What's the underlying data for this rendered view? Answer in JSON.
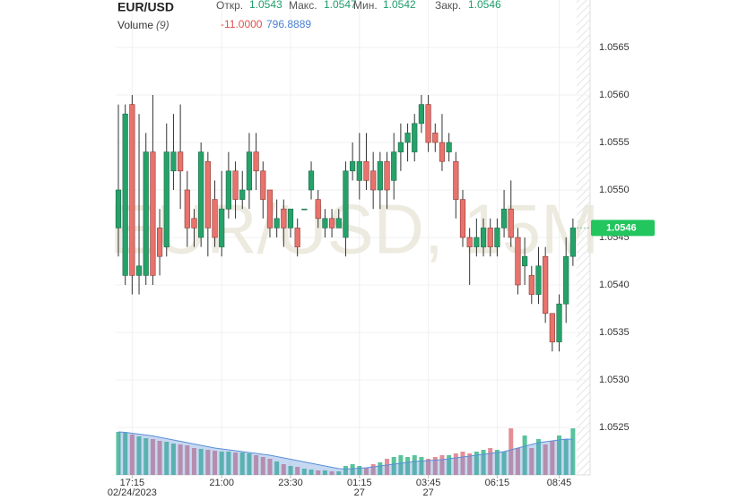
{
  "header": {
    "symbol": "EUR/USD",
    "open_label": "Откр.",
    "open": "1.0543",
    "high_label": "Макс.",
    "high": "1.0547",
    "low_label": "Мин.",
    "low": "1.0542",
    "close_label": "Закр.",
    "close": "1.0546",
    "volume_label": "Volume",
    "volume_period": "(9)",
    "volume_change": "-11.0000",
    "volume_value": "796.8889"
  },
  "chart_data": {
    "type": "candlestick",
    "watermark": "EUR/USD, 15M",
    "categories": [
      null,
      null,
      "17:15",
      null,
      null,
      null,
      null,
      null,
      null,
      null,
      null,
      null,
      null,
      null,
      null,
      "21:00",
      null,
      null,
      null,
      null,
      null,
      null,
      null,
      null,
      null,
      "23:30",
      null,
      null,
      null,
      null,
      null,
      null,
      null,
      null,
      null,
      "01:15",
      null,
      null,
      null,
      null,
      null,
      null,
      null,
      null,
      null,
      "03:45",
      null,
      null,
      null,
      null,
      null,
      null,
      null,
      null,
      null,
      "06:15",
      null,
      null,
      null,
      null,
      null,
      null,
      null,
      null,
      "08:45",
      null,
      null
    ],
    "category_dates": [
      null,
      null,
      "02/24/2023",
      null,
      null,
      null,
      null,
      null,
      null,
      null,
      null,
      null,
      null,
      null,
      null,
      null,
      null,
      null,
      null,
      null,
      null,
      null,
      null,
      null,
      null,
      null,
      null,
      null,
      null,
      null,
      null,
      null,
      null,
      null,
      null,
      "27",
      null,
      null,
      null,
      null,
      null,
      null,
      null,
      null,
      null,
      "27",
      null,
      null,
      null,
      null,
      null,
      null,
      null,
      null,
      null,
      null,
      null,
      null,
      null,
      null,
      null,
      null,
      null,
      null,
      null,
      null,
      null
    ],
    "open": [
      1.0546,
      1.0541,
      1.0559,
      1.0541,
      1.0541,
      1.0554,
      1.0546,
      1.0544,
      1.0552,
      1.0554,
      1.055,
      1.0547,
      1.0545,
      1.0553,
      1.0549,
      1.0544,
      1.0548,
      1.0552,
      1.0549,
      1.055,
      1.0554,
      1.0552,
      1.055,
      1.0546,
      1.0548,
      1.0546,
      1.0546,
      1.0548,
      1.055,
      1.0549,
      1.0546,
      1.0547,
      1.0546,
      1.0545,
      1.0552,
      1.0551,
      1.0553,
      1.0552,
      1.055,
      1.0553,
      1.0551,
      1.0554,
      1.0555,
      1.0554,
      1.0557,
      1.0559,
      1.0556,
      1.0555,
      1.0554,
      1.0553,
      1.0549,
      1.0545,
      1.0544,
      1.0544,
      1.0546,
      1.0544,
      1.0546,
      1.0548,
      1.0545,
      1.0542,
      1.0541,
      1.0539,
      1.0543,
      1.0537,
      1.0534,
      1.0538,
      1.0543
    ],
    "high": [
      1.0559,
      1.0559,
      1.056,
      1.0558,
      1.0556,
      1.056,
      1.0548,
      1.0557,
      1.0558,
      1.0559,
      1.0552,
      1.0548,
      1.0555,
      1.0554,
      1.0551,
      1.0552,
      1.0554,
      1.0553,
      1.0552,
      1.0556,
      1.0556,
      1.0553,
      1.055,
      1.0549,
      1.0549,
      1.0548,
      1.0547,
      1.0548,
      1.0553,
      1.055,
      1.0548,
      1.0548,
      1.0548,
      1.0553,
      1.0555,
      1.0556,
      1.0556,
      1.0554,
      1.0554,
      1.0554,
      1.0556,
      1.0557,
      1.0557,
      1.0558,
      1.056,
      1.056,
      1.0557,
      1.0558,
      1.0556,
      1.0554,
      1.055,
      1.0546,
      1.0547,
      1.0547,
      1.0547,
      1.0547,
      1.055,
      1.0551,
      1.0546,
      1.0545,
      1.0542,
      1.0544,
      1.0544,
      1.0537,
      1.0539,
      1.0545,
      1.0547
    ],
    "low": [
      1.0543,
      1.054,
      1.0539,
      1.0539,
      1.054,
      1.054,
      1.0541,
      1.0543,
      1.055,
      1.0548,
      1.0544,
      1.0544,
      1.0544,
      1.0543,
      1.0544,
      1.0543,
      1.0547,
      1.0547,
      1.0548,
      1.0548,
      1.055,
      1.0547,
      1.0545,
      1.0545,
      1.0544,
      1.0545,
      1.0543,
      1.0548,
      1.0549,
      1.0546,
      1.0545,
      1.0545,
      1.0546,
      1.0543,
      1.0551,
      1.0549,
      1.055,
      1.0548,
      1.0548,
      1.0548,
      1.0549,
      1.0552,
      1.0553,
      1.0553,
      1.0556,
      1.0554,
      1.0554,
      1.0552,
      1.0553,
      1.0547,
      1.0544,
      1.054,
      1.0543,
      1.0543,
      1.0543,
      1.0543,
      1.0545,
      1.0544,
      1.0539,
      1.054,
      1.0538,
      1.0538,
      1.0536,
      1.0533,
      1.0533,
      1.0536,
      1.0542
    ],
    "close": [
      1.055,
      1.0558,
      1.0541,
      1.0542,
      1.0554,
      1.0541,
      1.0543,
      1.0554,
      1.0554,
      1.0552,
      1.0546,
      1.0546,
      1.0554,
      1.0546,
      1.0545,
      1.0548,
      1.0552,
      1.0549,
      1.055,
      1.0554,
      1.0552,
      1.0549,
      1.0546,
      1.0547,
      1.0546,
      1.0548,
      1.0544,
      1.0548,
      1.0552,
      1.0547,
      1.0547,
      1.0546,
      1.0547,
      1.0552,
      1.0553,
      1.0553,
      1.0551,
      1.055,
      1.0553,
      1.055,
      1.0554,
      1.0555,
      1.0556,
      1.0557,
      1.0559,
      1.0555,
      1.0555,
      1.0553,
      1.0555,
      1.0549,
      1.0545,
      1.0544,
      1.0545,
      1.0546,
      1.0544,
      1.0546,
      1.0548,
      1.0545,
      1.054,
      1.0543,
      1.0539,
      1.0542,
      1.0537,
      1.0534,
      1.0538,
      1.0543,
      1.0546
    ],
    "volume": [
      960,
      940,
      900,
      860,
      820,
      800,
      760,
      740,
      700,
      680,
      660,
      600,
      580,
      560,
      540,
      520,
      520,
      500,
      500,
      480,
      440,
      400,
      360,
      300,
      240,
      200,
      180,
      140,
      120,
      100,
      100,
      80,
      80,
      200,
      240,
      200,
      160,
      240,
      280,
      360,
      400,
      440,
      400,
      440,
      400,
      360,
      400,
      440,
      440,
      480,
      520,
      480,
      520,
      560,
      600,
      560,
      520,
      1040,
      600,
      880,
      600,
      800,
      680,
      760,
      880,
      800,
      1040
    ],
    "volume_ma": [
      960,
      950,
      930,
      910,
      890,
      870,
      840,
      810,
      780,
      750,
      720,
      690,
      660,
      630,
      600,
      580,
      560,
      540,
      520,
      500,
      480,
      460,
      440,
      410,
      380,
      350,
      320,
      290,
      260,
      230,
      200,
      170,
      140,
      130,
      140,
      150,
      160,
      180,
      200,
      220,
      240,
      260,
      280,
      300,
      310,
      320,
      330,
      340,
      360,
      380,
      400,
      420,
      440,
      460,
      480,
      500,
      520,
      560,
      600,
      640,
      680,
      720,
      740,
      760,
      780,
      800,
      796.8889
    ],
    "ylim": [
      1.052,
      1.057
    ],
    "yticks": [
      {
        "value": 1.0525,
        "label": "1.0525"
      },
      {
        "value": 1.053,
        "label": "1.0530"
      },
      {
        "value": 1.0535,
        "label": "1.0535"
      },
      {
        "value": 1.054,
        "label": "1.0540"
      },
      {
        "value": 1.0545,
        "label": "1.0545"
      },
      {
        "value": 1.055,
        "label": "1.0550"
      },
      {
        "value": 1.0555,
        "label": "1.0555"
      },
      {
        "value": 1.056,
        "label": "1.0560"
      },
      {
        "value": 1.0565,
        "label": "1.0565"
      }
    ],
    "up_color": "#26a269",
    "down_color": "#e8736c",
    "volume_up_color": "#3cb98a",
    "volume_down_color": "#e07a86",
    "volume_ma_color": "#5b8fd8",
    "grid": true
  }
}
